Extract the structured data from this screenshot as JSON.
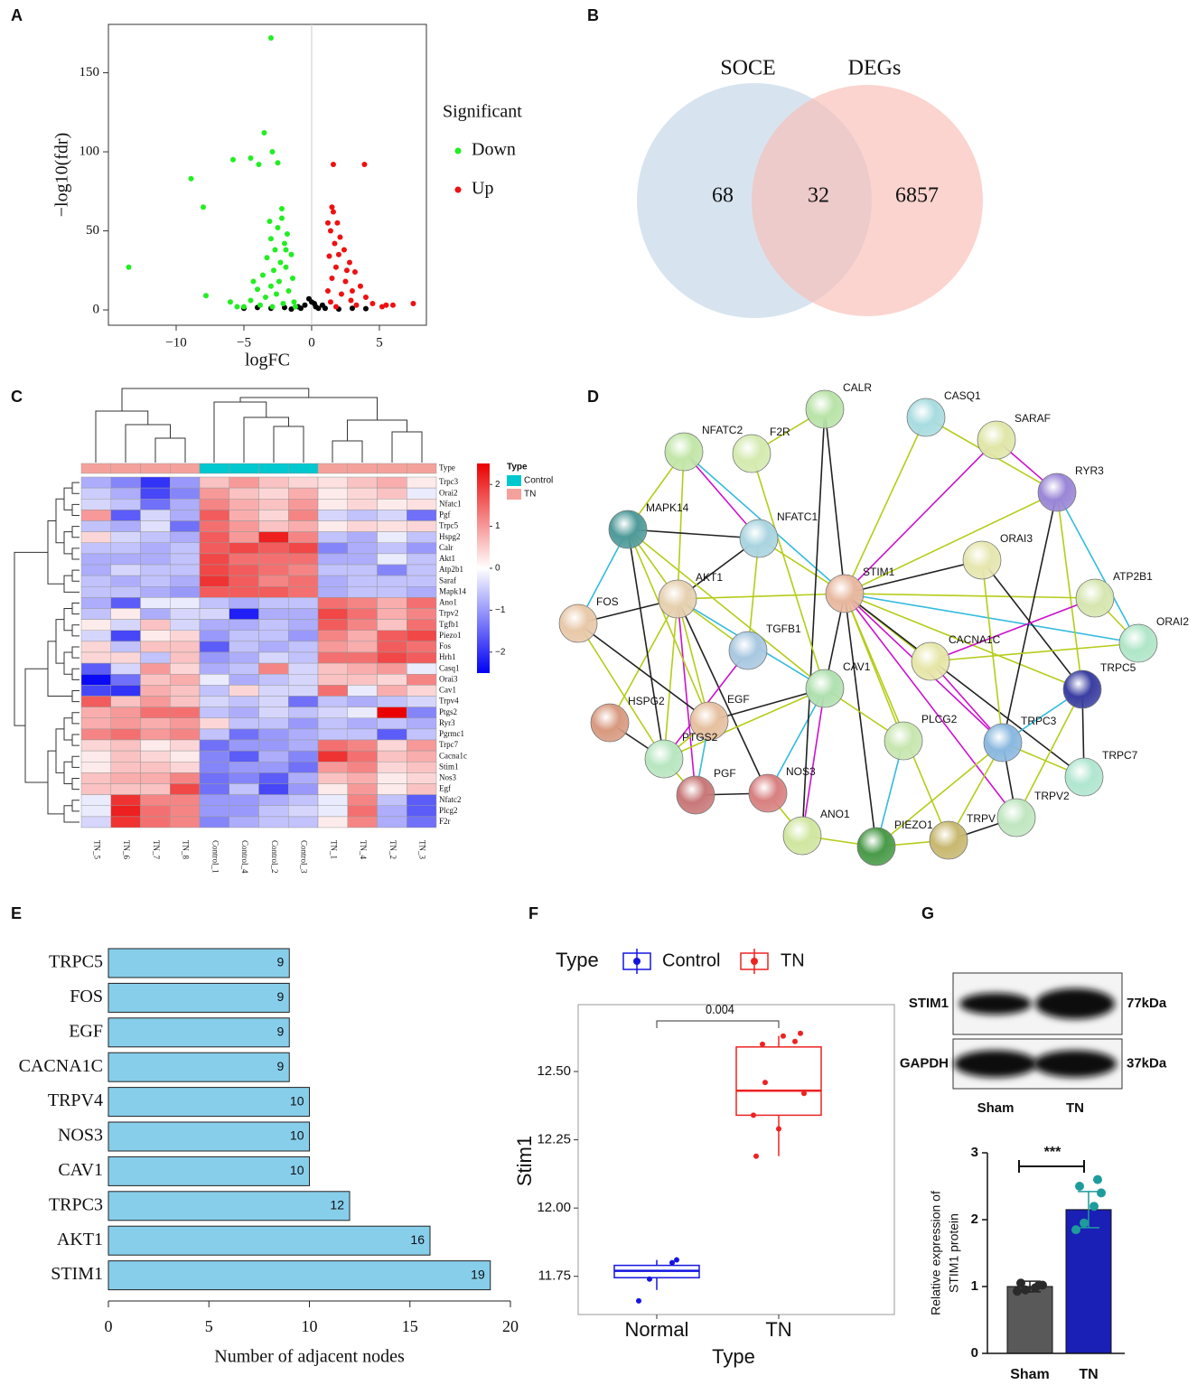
{
  "chart_data": [
    {
      "type": "scatter",
      "label": "A",
      "xlabel": "logFC",
      "ylabel": "−log10(fdr)",
      "legend_title": "Significant",
      "xlim": [
        -15,
        8.47
      ],
      "ylim": [
        -9.7,
        180.6
      ],
      "xticks": [
        {
          "value": -10,
          "label": "−10"
        },
        {
          "value": -5,
          "label": "−5"
        },
        0,
        5
      ],
      "yticks": [
        0,
        50,
        100,
        150
      ],
      "series": [
        {
          "name": "Down",
          "color": "#22ee22",
          "x": [
            -3,
            -3.5,
            -8.9,
            -8,
            -5.8,
            -4.5,
            -3.9,
            -2.5,
            -2.9,
            -13.5,
            -7.8,
            -6.0,
            -5.5,
            -2.2,
            -2.5,
            -1.8,
            -3.0,
            -2.0,
            -2.7,
            -1.5,
            -3.3,
            -2.3,
            -1.9,
            -2.8,
            -3.6,
            -1.4,
            -2.4,
            -3.0,
            -4.0,
            -1.7,
            -2.6,
            -3.4,
            -4.5,
            -1.3,
            -2.1,
            -3.8,
            -5.0,
            -1.2,
            -2.9,
            -2.2,
            -1.9,
            -3.1,
            -4.3
          ],
          "values": [
            172,
            112,
            83,
            65,
            95,
            96,
            92,
            93,
            100,
            27,
            9,
            5,
            2,
            58,
            52,
            48,
            45,
            42,
            38,
            35,
            33,
            30,
            27,
            25,
            22,
            20,
            18,
            15,
            13,
            12,
            10,
            8,
            6,
            5,
            4,
            3,
            2,
            2,
            2,
            64,
            38,
            56,
            18
          ]
        },
        {
          "name": "Up",
          "color": "#ee1111",
          "x": [
            1.6,
            3.9,
            7.5,
            5.5,
            1.5,
            1.2,
            1.6,
            1.9,
            1.4,
            2.1,
            1.7,
            2.4,
            1.3,
            2.8,
            1.8,
            3.2,
            1.5,
            2.5,
            3.6,
            1.2,
            2.2,
            4.0,
            2.9,
            1.4,
            4.5,
            3.3,
            1.8,
            5.2,
            6.0,
            2.0,
            2.6,
            3.0
          ],
          "values": [
            92,
            92,
            4,
            3,
            65,
            55,
            62,
            55,
            50,
            46,
            42,
            38,
            34,
            30,
            27,
            24,
            20,
            18,
            15,
            12,
            10,
            8,
            6,
            5,
            4,
            3,
            2,
            2,
            3,
            35,
            25,
            12
          ]
        },
        {
          "color": "#000000",
          "x": [
            -5,
            -4,
            -3,
            -2,
            -1,
            -0.5,
            0,
            0.3,
            0.5,
            1,
            2,
            3,
            4,
            -1.5,
            -0.8,
            0.8,
            -0.2,
            0.2
          ],
          "values": [
            1,
            1.5,
            1,
            1.5,
            2,
            3,
            5,
            2,
            1,
            1,
            0.5,
            1,
            0.8,
            0.5,
            1,
            3,
            7,
            4
          ]
        }
      ]
    },
    {
      "type": "venn",
      "label": "B",
      "sets": [
        "SOCE",
        "DEGs"
      ],
      "values": [
        68,
        32,
        6857
      ],
      "colors": [
        "#c9dbea",
        "#f9bdb6"
      ]
    },
    {
      "type": "heatmap",
      "label": "C",
      "annotation_label": "Type",
      "legend_title": "Type",
      "groups": [
        {
          "name": "Control",
          "color": "#00c8cf"
        },
        {
          "name": "TN",
          "color": "#f5a19b"
        }
      ],
      "columns": [
        "TN_5",
        "TN_6",
        "TN_7",
        "TN_8",
        "Control_1",
        "Control_4",
        "Control_2",
        "Control_3",
        "TN_1",
        "TN_4",
        "TN_2",
        "TN_3"
      ],
      "column_groups": [
        "TN",
        "TN",
        "TN",
        "TN",
        "Control",
        "Control",
        "Control",
        "Control",
        "TN",
        "TN",
        "TN",
        "TN"
      ],
      "rows": [
        "Trpc3",
        "Orai2",
        "Nfatc1",
        "Pgf",
        "Trpc5",
        "Hspg2",
        "Calr",
        "Akt1",
        "Atp2b1",
        "Saraf",
        "Mapk14",
        "Ano1",
        "Trpv2",
        "Tgfb1",
        "Piezo1",
        "Fos",
        "Hrh1",
        "Casq1",
        "Orai3",
        "Cav1",
        "Trpv4",
        "Ptgs2",
        "Ryr3",
        "Pgrmc1",
        "Trpc7",
        "Cacna1c",
        "Stim1",
        "Nos3",
        "Egf",
        "Nfatc2",
        "Plcg2",
        "F2r"
      ],
      "clim": [
        -2.5,
        2.5
      ],
      "cticks": [
        2,
        1,
        0,
        {
          "value": -1,
          "label": "−1"
        },
        {
          "value": -2,
          "label": "−2"
        }
      ],
      "values": [
        [
          -0.8,
          -1.2,
          -2.0,
          -1.0,
          0.6,
          1.0,
          0.6,
          0.4,
          0.3,
          0.6,
          0.8,
          0.2
        ],
        [
          -0.5,
          -0.8,
          -1.8,
          -1.2,
          1.0,
          0.6,
          0.4,
          0.8,
          0.2,
          0.4,
          0.6,
          -0.2
        ],
        [
          -0.4,
          -0.6,
          -1.4,
          -0.8,
          1.2,
          0.8,
          0.6,
          1.0,
          0.2,
          0.4,
          0.2,
          0.3
        ],
        [
          1.0,
          -1.6,
          -0.4,
          -0.8,
          1.6,
          0.8,
          0.4,
          1.2,
          -0.4,
          -0.6,
          -0.4,
          -1.4
        ],
        [
          -0.6,
          -0.8,
          -0.3,
          -1.4,
          1.4,
          1.0,
          0.6,
          0.8,
          0.2,
          0.4,
          0.3,
          0.4
        ],
        [
          0.4,
          -0.4,
          -0.6,
          -0.8,
          1.6,
          1.0,
          2.2,
          1.2,
          -0.6,
          -0.8,
          -0.2,
          -0.6
        ],
        [
          -0.6,
          -0.6,
          -0.8,
          -0.6,
          1.6,
          1.8,
          1.6,
          1.8,
          -1.2,
          -0.8,
          -0.6,
          -1.0
        ],
        [
          -0.8,
          -0.8,
          -0.8,
          -0.6,
          1.8,
          1.4,
          1.4,
          1.4,
          -0.8,
          -0.8,
          -0.2,
          -0.6
        ],
        [
          -0.8,
          -0.4,
          -0.6,
          -0.6,
          1.8,
          1.6,
          1.4,
          1.2,
          -0.6,
          -0.6,
          -1.2,
          -0.6
        ],
        [
          -0.6,
          -0.8,
          -0.6,
          -0.8,
          2.0,
          1.6,
          1.2,
          1.4,
          -0.8,
          -0.6,
          -0.6,
          -0.6
        ],
        [
          -0.6,
          -0.6,
          -0.8,
          -1.0,
          1.6,
          1.6,
          1.6,
          1.4,
          -0.8,
          -0.6,
          -0.6,
          -0.8
        ],
        [
          -0.8,
          -1.6,
          -0.2,
          -0.2,
          -0.6,
          -0.8,
          -0.6,
          -0.6,
          1.4,
          1.2,
          0.8,
          1.4
        ],
        [
          -0.6,
          0.2,
          -0.8,
          -0.4,
          -0.4,
          -2.2,
          -0.8,
          -0.8,
          1.8,
          1.4,
          0.8,
          1.2
        ],
        [
          0.2,
          -0.4,
          0.6,
          -0.4,
          -0.8,
          -0.8,
          -0.6,
          -0.8,
          1.6,
          1.2,
          0.6,
          1.4
        ],
        [
          -0.4,
          -1.8,
          0.2,
          0.4,
          -1.0,
          -0.6,
          -0.6,
          -1.0,
          1.2,
          0.8,
          1.6,
          1.8
        ],
        [
          0.4,
          -0.6,
          0.6,
          0.6,
          -1.6,
          -0.6,
          -0.8,
          -0.6,
          1.0,
          0.8,
          1.6,
          1.4
        ],
        [
          0.4,
          0.4,
          -0.6,
          0.6,
          -1.0,
          -0.8,
          -0.4,
          -0.6,
          1.4,
          1.4,
          1.8,
          1.6
        ],
        [
          -1.6,
          -0.4,
          1.0,
          0.4,
          -0.8,
          -0.6,
          1.2,
          -0.4,
          0.6,
          0.8,
          1.0,
          -0.2
        ],
        [
          -2.4,
          -1.4,
          0.6,
          0.8,
          -0.2,
          -0.8,
          -0.6,
          -0.4,
          0.6,
          0.6,
          0.4,
          1.2
        ],
        [
          -1.8,
          -2.0,
          0.8,
          0.6,
          -0.6,
          0.4,
          -0.4,
          -0.4,
          1.4,
          -0.2,
          0.8,
          0.4
        ],
        [
          1.6,
          0.6,
          1.0,
          0.6,
          -0.4,
          -0.6,
          -0.4,
          -1.4,
          -0.6,
          -0.8,
          -0.6,
          -0.4
        ],
        [
          0.8,
          1.0,
          1.4,
          1.4,
          -0.6,
          -0.8,
          -0.4,
          -0.6,
          -0.4,
          -0.2,
          2.6,
          -1.2
        ],
        [
          0.8,
          1.0,
          0.8,
          1.0,
          0.4,
          -0.6,
          -0.6,
          -1.0,
          -0.6,
          -0.8,
          -0.6,
          -0.8
        ],
        [
          1.2,
          1.4,
          1.0,
          1.2,
          -0.6,
          -1.4,
          -1.0,
          -0.8,
          -0.6,
          -0.6,
          -1.6,
          -0.6
        ],
        [
          0.4,
          0.6,
          0.2,
          0.4,
          -1.4,
          -1.0,
          -1.0,
          -0.8,
          1.4,
          1.2,
          0.4,
          1.0
        ],
        [
          0.2,
          0.6,
          0.4,
          0.2,
          -1.2,
          -1.6,
          -0.8,
          -1.2,
          2.0,
          1.4,
          0.6,
          0.8
        ],
        [
          0.2,
          0.6,
          0.6,
          0.4,
          -1.2,
          -1.0,
          -1.0,
          -1.4,
          1.0,
          1.2,
          0.4,
          0.6
        ],
        [
          0.6,
          0.8,
          0.8,
          1.2,
          -1.4,
          -1.2,
          -1.6,
          -0.8,
          0.6,
          0.8,
          0.2,
          0.4
        ],
        [
          0.6,
          0.6,
          0.6,
          1.8,
          -1.4,
          -0.6,
          -1.8,
          -1.0,
          0.2,
          1.0,
          0.2,
          0.6
        ],
        [
          -0.2,
          2.0,
          1.2,
          1.2,
          -1.0,
          -1.0,
          -0.8,
          -0.6,
          -0.2,
          1.2,
          -0.6,
          -1.6
        ],
        [
          -0.2,
          2.2,
          1.4,
          1.2,
          -1.0,
          -1.0,
          -0.6,
          -0.4,
          -0.2,
          1.4,
          -0.8,
          -1.6
        ],
        [
          -0.4,
          2.0,
          1.4,
          1.2,
          -1.2,
          -0.8,
          -0.6,
          -0.6,
          0.2,
          1.2,
          -0.8,
          -1.4
        ]
      ]
    },
    {
      "type": "network",
      "label": "D",
      "nodes": [
        "CALR",
        "CASQ1",
        "SARAF",
        "NFATC2",
        "F2R",
        "RYR3",
        "MAPK14",
        "NFATC1",
        "ORAI3",
        "STIM1",
        "ATP2B1",
        "FOS",
        "AKT1",
        "ORAI2",
        "TGFB1",
        "CACNA1C",
        "CAV1",
        "EGF",
        "HSPG2",
        "TRPC5",
        "TRPC3",
        "PLCG2",
        "PTGS2",
        "TRPC7",
        "NOS3",
        "PGF",
        "TRPV2",
        "ANO1",
        "PIEZO1",
        "TRPV"
      ]
    },
    {
      "type": "hbar",
      "label": "E",
      "xlabel": "Number of adjacent nodes",
      "color": "#87ceeb",
      "categories": [
        "TRPC5",
        "FOS",
        "EGF",
        "CACNA1C",
        "TRPV4",
        "NOS3",
        "CAV1",
        "TRPC3",
        "AKT1",
        "STIM1"
      ],
      "values": [
        9,
        9,
        9,
        9,
        10,
        10,
        10,
        12,
        16,
        19
      ],
      "xlim": [
        0,
        20
      ],
      "xticks": [
        0,
        5,
        10,
        15,
        20
      ]
    },
    {
      "type": "box",
      "label": "F",
      "legend_title": "Type",
      "xlabel": "Type",
      "ylabel": "Stim1",
      "annotation": "0.004",
      "categories": [
        "Normal",
        "TN"
      ],
      "ylim": [
        11.61,
        12.745
      ],
      "yticks": [
        11.75,
        {
          "value": 12,
          "label": "12.00"
        },
        12.25,
        {
          "value": 12.5,
          "label": "12.50"
        }
      ],
      "series": [
        {
          "name": "Control",
          "color": "#1515e0",
          "stats": [
            11.7,
            11.745,
            11.77,
            11.79,
            11.81
          ],
          "points": [
            11.66,
            11.74,
            11.8,
            11.81
          ]
        },
        {
          "name": "TN",
          "color": "#ee2222",
          "stats": [
            12.19,
            12.34,
            12.43,
            12.59,
            12.63
          ],
          "points": [
            12.19,
            12.29,
            12.34,
            12.42,
            12.46,
            12.6,
            12.61,
            12.63,
            12.64
          ]
        }
      ]
    },
    {
      "type": "blotbar",
      "label": "G",
      "blot": {
        "bands": [
          "STIM1",
          "GAPDH"
        ],
        "sizes": [
          "77kDa",
          "37kDa"
        ],
        "lanes": [
          "Sham",
          "TN"
        ]
      },
      "ylabel": [
        "Relative expression of",
        "STIM1 protein"
      ],
      "annotation": "***",
      "categories": [
        "Sham",
        "TN"
      ],
      "values": [
        1.0,
        2.15
      ],
      "errors": [
        0.08,
        0.27
      ],
      "colors": [
        "#595959",
        "#1a1fb5"
      ],
      "points": [
        [
          0.93,
          0.95,
          0.98,
          1.02,
          1.05,
          1.02
        ],
        [
          1.85,
          1.95,
          2.2,
          2.4,
          2.5,
          2.6
        ]
      ],
      "point_colors": [
        "#2a2a2a",
        "#1e9c9c"
      ],
      "ylim": [
        0,
        3
      ],
      "yticks": [
        0,
        1,
        2,
        3
      ]
    }
  ]
}
